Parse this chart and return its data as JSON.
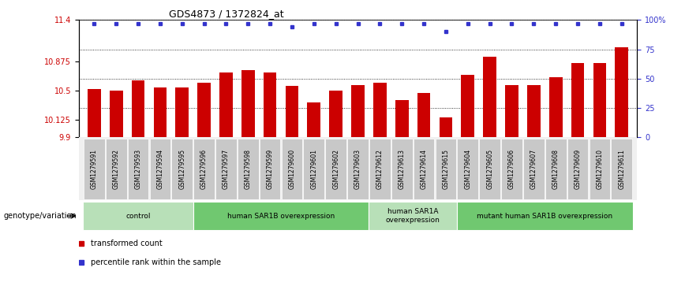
{
  "title": "GDS4873 / 1372824_at",
  "samples": [
    "GSM1279591",
    "GSM1279592",
    "GSM1279593",
    "GSM1279594",
    "GSM1279595",
    "GSM1279596",
    "GSM1279597",
    "GSM1279598",
    "GSM1279599",
    "GSM1279600",
    "GSM1279601",
    "GSM1279602",
    "GSM1279603",
    "GSM1279612",
    "GSM1279613",
    "GSM1279614",
    "GSM1279615",
    "GSM1279604",
    "GSM1279605",
    "GSM1279606",
    "GSM1279607",
    "GSM1279608",
    "GSM1279609",
    "GSM1279610",
    "GSM1279611"
  ],
  "bar_values": [
    10.52,
    10.5,
    10.63,
    10.54,
    10.54,
    10.6,
    10.73,
    10.76,
    10.73,
    10.56,
    10.35,
    10.5,
    10.57,
    10.6,
    10.38,
    10.47,
    10.15,
    10.7,
    10.93,
    10.57,
    10.57,
    10.67,
    10.85,
    10.85,
    11.05
  ],
  "percentile_values": [
    97,
    97,
    97,
    97,
    97,
    97,
    97,
    97,
    97,
    94,
    97,
    97,
    97,
    97,
    97,
    97,
    90,
    97,
    97,
    97,
    97,
    97,
    97,
    97,
    97
  ],
  "ymin": 9.9,
  "ymax": 11.4,
  "yticks": [
    9.9,
    10.125,
    10.5,
    10.875,
    11.4
  ],
  "ytick_labels": [
    "9.9",
    "10.125",
    "10.5",
    "10.875",
    "11.4"
  ],
  "right_yticks": [
    0,
    25,
    50,
    75,
    100
  ],
  "right_ytick_labels": [
    "0",
    "25",
    "50",
    "75",
    "100%"
  ],
  "bar_color": "#cc0000",
  "dot_color": "#3333cc",
  "bg_color": "#f0f0f0",
  "groups": [
    {
      "label": "control",
      "start": 0,
      "end": 5,
      "color": "#b8e0b8"
    },
    {
      "label": "human SAR1B overexpression",
      "start": 5,
      "end": 13,
      "color": "#70c870"
    },
    {
      "label": "human SAR1A\noverexpression",
      "start": 13,
      "end": 17,
      "color": "#b8e0b8"
    },
    {
      "label": "mutant human SAR1B overexpression",
      "start": 17,
      "end": 25,
      "color": "#70c870"
    }
  ],
  "legend_label_bar": "transformed count",
  "legend_label_dot": "percentile rank within the sample",
  "xlabel_genotype": "genotype/variation"
}
